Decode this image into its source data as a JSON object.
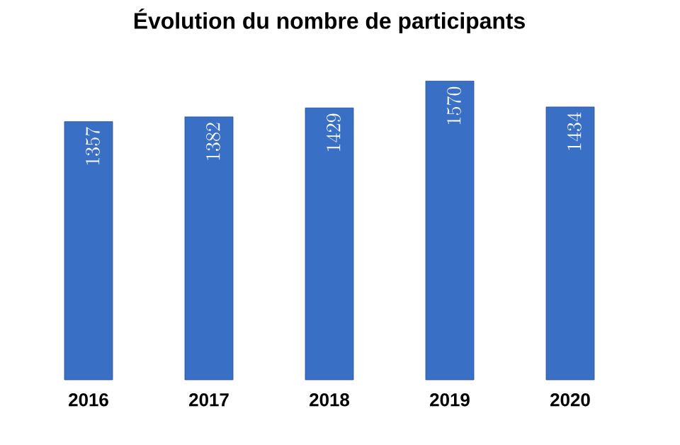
{
  "chart_data": {
    "type": "bar",
    "title": "Évolution du nombre de participants",
    "categories": [
      "2016",
      "2017",
      "2018",
      "2019",
      "2020"
    ],
    "values": [
      1357,
      1382,
      1429,
      1570,
      1434
    ],
    "color": "#3a6fc6",
    "data_labels": true,
    "tick_labels": "x"
  }
}
